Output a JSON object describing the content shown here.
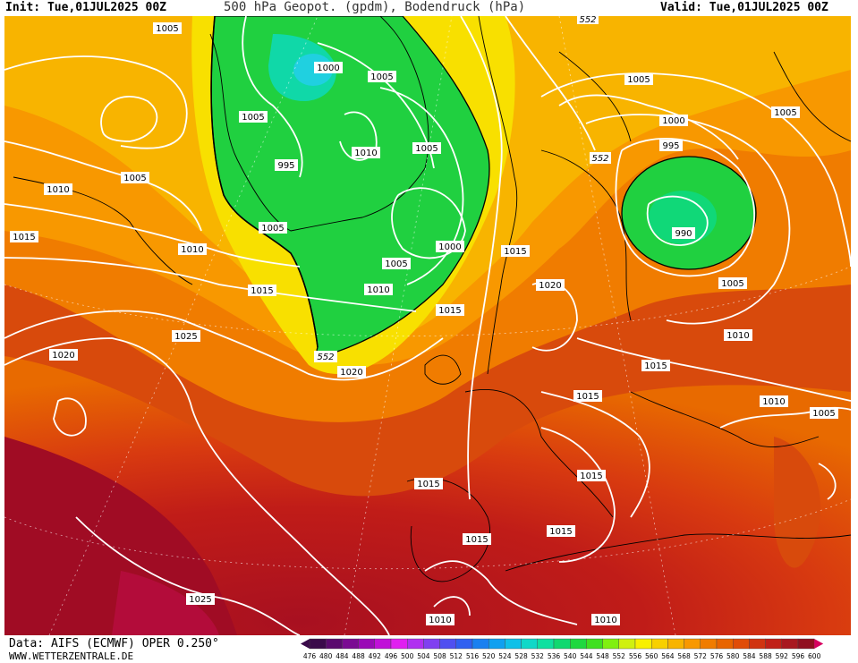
{
  "header": {
    "init": "Init: Tue,01JUL2025 00Z",
    "title": "500 hPa Geopot. (gpdm), Bodendruck (hPa)",
    "valid": "Valid: Tue,01JUL2025 00Z"
  },
  "footer": {
    "data_source": "Data: AIFS (ECMWF) OPER 0.250°",
    "site": "WWW.WETTERZENTRALE.DE"
  },
  "legend": {
    "values": [
      "476",
      "480",
      "484",
      "488",
      "492",
      "496",
      "500",
      "504",
      "508",
      "512",
      "516",
      "520",
      "524",
      "528",
      "532",
      "536",
      "540",
      "544",
      "548",
      "552",
      "556",
      "560",
      "564",
      "568",
      "572",
      "576",
      "580",
      "584",
      "588",
      "592",
      "596",
      "600"
    ],
    "colors": [
      "#3a0a4a",
      "#5a0a6e",
      "#7a0a92",
      "#9a0ab6",
      "#c010d8",
      "#e020f0",
      "#b030f0",
      "#8040f0",
      "#5050f0",
      "#3060f0",
      "#1a80f0",
      "#10a0f0",
      "#10c0e8",
      "#10d8c8",
      "#10e0a0",
      "#10d870",
      "#20d840",
      "#40e020",
      "#80f010",
      "#d0f010",
      "#f8f000",
      "#f8d000",
      "#f8b400",
      "#f89800",
      "#f07c00",
      "#e86400",
      "#e04c08",
      "#d03410",
      "#c02018",
      "#a81820",
      "#901020",
      "#d80060"
    ]
  },
  "isobars": [
    "1005",
    "1000",
    "1005",
    "1005",
    "1005",
    "995",
    "1010",
    "1005",
    "1005",
    "1010",
    "1015",
    "1010",
    "1000",
    "1005",
    "1015",
    "1010",
    "1015",
    "1025",
    "1020",
    "1020",
    "1015",
    "1020",
    "1015",
    "1015",
    "1015",
    "1015",
    "1015",
    "1015",
    "1025",
    "1010",
    "1010",
    "1010",
    "1005",
    "1005",
    "1000",
    "995",
    "990",
    "1005",
    "1010",
    "1020",
    "1005"
  ],
  "isohypse": [
    "552",
    "552",
    "552"
  ]
}
